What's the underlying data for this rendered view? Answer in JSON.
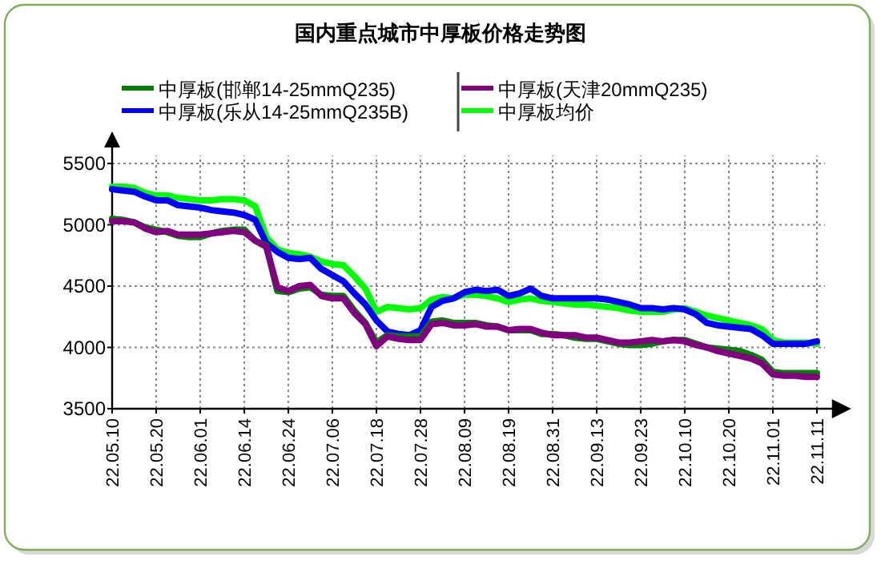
{
  "chart_data": {
    "type": "line",
    "title": "国内重点城市中厚板价格走势图",
    "categories": [
      "22.05.10",
      null,
      null,
      null,
      "22.05.20",
      null,
      null,
      null,
      "22.06.01",
      null,
      null,
      null,
      "22.06.14",
      null,
      null,
      null,
      "22.06.24",
      null,
      null,
      null,
      "22.07.06",
      null,
      null,
      null,
      "22.07.18",
      null,
      null,
      null,
      "22.07.28",
      null,
      null,
      null,
      "22.08.09",
      null,
      null,
      null,
      "22.08.19",
      null,
      null,
      null,
      "22.08.31",
      null,
      null,
      null,
      "22.09.13",
      null,
      null,
      null,
      "22.09.23",
      null,
      null,
      null,
      "22.10.10",
      null,
      null,
      null,
      "22.10.20",
      null,
      null,
      null,
      "22.11.01",
      null,
      null,
      null,
      "22.11.11"
    ],
    "ylim": [
      3500,
      5500
    ],
    "yticks": [
      3500,
      4000,
      4500,
      5000,
      5500
    ],
    "grid": true,
    "legend": "top",
    "marker": "none",
    "line_style": "solid",
    "series": [
      {
        "name": "中厚板(邯郸14-25mmQ235)",
        "color": "#008000",
        "values": [
          5050,
          5040,
          5020,
          4980,
          4960,
          4940,
          4910,
          4900,
          4900,
          4930,
          4950,
          4960,
          4960,
          4870,
          4830,
          4460,
          4450,
          4480,
          4490,
          4430,
          4420,
          4420,
          4300,
          4200,
          4040,
          4100,
          4090,
          4090,
          4090,
          4210,
          4220,
          4200,
          4200,
          4200,
          4180,
          4170,
          4140,
          4140,
          4140,
          4110,
          4110,
          4100,
          4080,
          4070,
          4070,
          4050,
          4030,
          4020,
          4020,
          4030,
          4050,
          4060,
          4060,
          4030,
          4000,
          3990,
          3980,
          3970,
          3940,
          3900,
          3800,
          3790,
          3790,
          3790,
          3790
        ]
      },
      {
        "name": "中厚板(乐从14-25mmQ235B)",
        "color": "#0000ff",
        "values": [
          5290,
          5280,
          5270,
          5230,
          5200,
          5200,
          5160,
          5150,
          5140,
          5120,
          5110,
          5100,
          5080,
          5040,
          4850,
          4780,
          4730,
          4720,
          4730,
          4640,
          4590,
          4540,
          4440,
          4350,
          4220,
          4130,
          4110,
          4100,
          4140,
          4330,
          4380,
          4400,
          4450,
          4470,
          4460,
          4470,
          4420,
          4440,
          4480,
          4420,
          4400,
          4400,
          4400,
          4400,
          4400,
          4390,
          4370,
          4350,
          4320,
          4320,
          4310,
          4320,
          4310,
          4270,
          4200,
          4180,
          4170,
          4160,
          4150,
          4100,
          4030,
          4030,
          4030,
          4030,
          4050
        ]
      },
      {
        "name": "中厚板(天津20mmQ235)",
        "color": "#800080",
        "values": [
          5030,
          5030,
          5020,
          4970,
          4940,
          4950,
          4920,
          4920,
          4920,
          4930,
          4940,
          4950,
          4940,
          4870,
          4820,
          4490,
          4460,
          4500,
          4510,
          4420,
          4400,
          4400,
          4280,
          4190,
          4010,
          4090,
          4070,
          4060,
          4060,
          4190,
          4200,
          4180,
          4180,
          4190,
          4170,
          4170,
          4140,
          4150,
          4150,
          4120,
          4100,
          4100,
          4100,
          4080,
          4080,
          4060,
          4040,
          4040,
          4050,
          4060,
          4050,
          4060,
          4050,
          4020,
          4000,
          3970,
          3950,
          3930,
          3910,
          3870,
          3780,
          3770,
          3770,
          3760,
          3760
        ]
      },
      {
        "name": "中厚板均价",
        "color": "#00ff00",
        "values": [
          5310,
          5310,
          5300,
          5260,
          5240,
          5240,
          5220,
          5210,
          5200,
          5200,
          5210,
          5210,
          5200,
          5150,
          4900,
          4800,
          4770,
          4760,
          4740,
          4700,
          4680,
          4670,
          4580,
          4480,
          4290,
          4330,
          4320,
          4310,
          4320,
          4390,
          4410,
          4400,
          4430,
          4430,
          4420,
          4400,
          4370,
          4390,
          4400,
          4380,
          4370,
          4360,
          4350,
          4350,
          4340,
          4330,
          4320,
          4300,
          4290,
          4290,
          4290,
          4310,
          4320,
          4290,
          4260,
          4240,
          4220,
          4200,
          4180,
          4150,
          4060,
          4040,
          4040,
          4040,
          4030
        ]
      }
    ]
  }
}
